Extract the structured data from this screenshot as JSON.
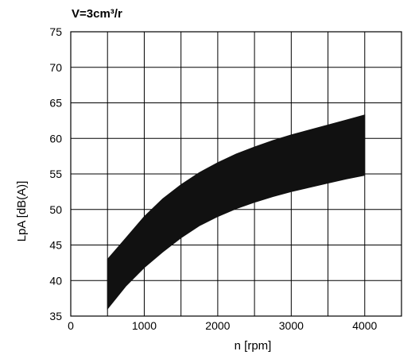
{
  "chart_data": {
    "type": "area",
    "title": "V=3cm³/r",
    "xlabel": "n [rpm]",
    "ylabel": "LpA [dB(A)]",
    "xlim": [
      0,
      4500
    ],
    "ylim": [
      35,
      75
    ],
    "x_ticks": [
      0,
      1000,
      2000,
      3000,
      4000
    ],
    "x_tick_labels": [
      "0",
      "1000",
      "2000",
      "3000",
      "4000"
    ],
    "y_ticks": [
      35,
      40,
      45,
      50,
      55,
      60,
      65,
      70,
      75
    ],
    "y_tick_labels": [
      "35",
      "40",
      "45",
      "50",
      "55",
      "60",
      "65",
      "70",
      "75"
    ],
    "grid": true,
    "band_color": "#111111",
    "series": [
      {
        "x": [
          500,
          750,
          1000,
          1250,
          1500,
          1750,
          2000,
          2250,
          2500,
          2750,
          3000,
          3250,
          3500,
          3750,
          4000
        ],
        "upper": [
          43,
          46,
          49,
          51.5,
          53.5,
          55.2,
          56.6,
          57.8,
          58.8,
          59.7,
          60.5,
          61.2,
          61.9,
          62.6,
          63.3
        ],
        "lower": [
          36,
          39.2,
          41.8,
          44,
          46,
          47.7,
          49,
          50.1,
          51,
          51.8,
          52.5,
          53.1,
          53.7,
          54.3,
          54.8
        ]
      }
    ]
  }
}
